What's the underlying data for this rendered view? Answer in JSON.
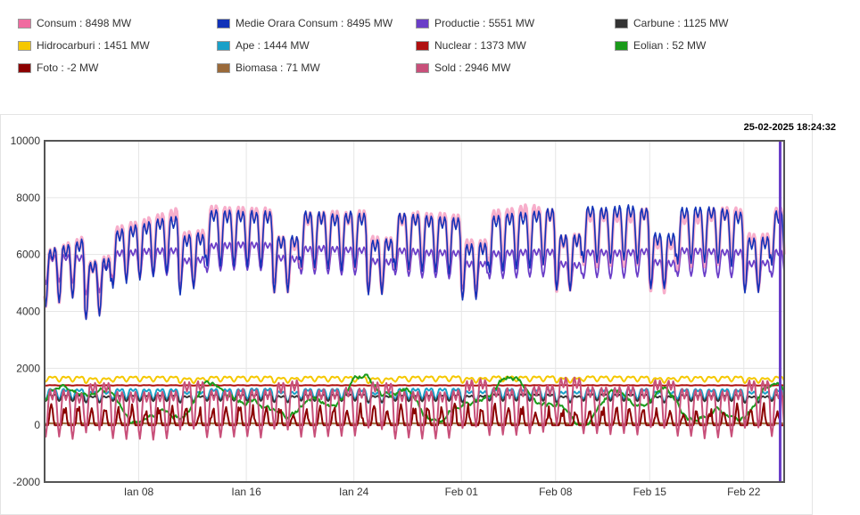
{
  "timestamp": "25-02-2025 18:24:32",
  "legend": [
    {
      "label": "Consum : 8498 MW",
      "color": "#f06ba0"
    },
    {
      "label": "Medie Orara Consum : 8495 MW",
      "color": "#1132b8"
    },
    {
      "label": "Productie : 5551 MW",
      "color": "#6a3ec8"
    },
    {
      "label": "Carbune : 1125 MW",
      "color": "#333333"
    },
    {
      "label": "Hidrocarburi : 1451 MW",
      "color": "#f5c800"
    },
    {
      "label": "Ape : 1444 MW",
      "color": "#1aa0c8"
    },
    {
      "label": "Nuclear : 1373 MW",
      "color": "#b01010"
    },
    {
      "label": "Eolian : 52 MW",
      "color": "#1a9a1a"
    },
    {
      "label": "Foto : -2 MW",
      "color": "#8b0000"
    },
    {
      "label": "Biomasa : 71 MW",
      "color": "#9a6a3a"
    },
    {
      "label": "Sold : 2946 MW",
      "color": "#c8507a"
    }
  ],
  "chart_data": {
    "type": "line",
    "title": "",
    "xlabel": "",
    "ylabel": "",
    "ylim": [
      -2000,
      10000
    ],
    "y_ticks": [
      10000,
      8000,
      6000,
      4000,
      2000,
      0,
      -2000
    ],
    "x_ticks": [
      "Ian 08",
      "Ian 16",
      "Ian 24",
      "Feb 01",
      "Feb 08",
      "Feb 15",
      "Feb 22"
    ],
    "x_range_days": [
      "2025-01-01",
      "2025-02-25"
    ],
    "x_tick_days": [
      "2025-01-08",
      "2025-01-16",
      "2025-01-24",
      "2025-02-01",
      "2025-02-08",
      "2025-02-15",
      "2025-02-22"
    ],
    "grid": true,
    "cursor_day": "2025-02-25",
    "series": [
      {
        "name": "Consum",
        "color": "#f06ba0",
        "base": 6700,
        "daily_amp": 1300,
        "weekend_drop": 900,
        "trend": [
          {
            "day": "2025-01-01",
            "level": 5500
          },
          {
            "day": "2025-01-06",
            "level": 6200
          },
          {
            "day": "2025-01-12",
            "level": 7000
          },
          {
            "day": "2025-01-20",
            "level": 6800
          },
          {
            "day": "2025-02-01",
            "level": 6700
          },
          {
            "day": "2025-02-12",
            "level": 7000
          },
          {
            "day": "2025-02-25",
            "level": 6900
          }
        ]
      },
      {
        "name": "Medie Orara Consum",
        "color": "#1132b8",
        "base": 6700,
        "daily_amp": 1300,
        "weekend_drop": 900,
        "trend": [
          {
            "day": "2025-01-01",
            "level": 5500
          },
          {
            "day": "2025-01-06",
            "level": 6200
          },
          {
            "day": "2025-01-12",
            "level": 7000
          },
          {
            "day": "2025-01-20",
            "level": 6800
          },
          {
            "day": "2025-02-01",
            "level": 6700
          },
          {
            "day": "2025-02-12",
            "level": 7000
          },
          {
            "day": "2025-02-25",
            "level": 6900
          }
        ]
      },
      {
        "name": "Productie",
        "color": "#6a3ec8",
        "base": 6000,
        "daily_amp": 650,
        "weekend_drop": 400,
        "trend": [
          {
            "day": "2025-01-01",
            "level": 5600
          },
          {
            "day": "2025-01-15",
            "level": 6100
          },
          {
            "day": "2025-02-01",
            "level": 5800
          },
          {
            "day": "2025-02-25",
            "level": 5900
          }
        ]
      },
      {
        "name": "Hidrocarburi",
        "color": "#f5c800",
        "base": 1650,
        "daily_amp": 120,
        "weekend_drop": 50
      },
      {
        "name": "Nuclear",
        "color": "#b01010",
        "base": 1400,
        "daily_amp": 10,
        "weekend_drop": 0
      },
      {
        "name": "Ape",
        "color": "#1aa0c8",
        "base": 1150,
        "daily_amp": 250,
        "weekend_drop": 100
      },
      {
        "name": "Carbune",
        "color": "#333333",
        "base": 1000,
        "daily_amp": 150,
        "weekend_drop": 50
      },
      {
        "name": "Eolian",
        "color": "#1a9a1a",
        "base": 900,
        "daily_amp": 500,
        "weekend_drop": 0
      },
      {
        "name": "Biomasa",
        "color": "#9a6a3a",
        "base": 60,
        "daily_amp": 10,
        "weekend_drop": 0
      },
      {
        "name": "Foto",
        "color": "#8b0000",
        "base": 200,
        "daily_amp": 400,
        "weekend_drop": 0
      },
      {
        "name": "Sold",
        "color": "#c8507a",
        "base": 700,
        "daily_amp": 1100,
        "weekend_drop": -300
      }
    ]
  }
}
